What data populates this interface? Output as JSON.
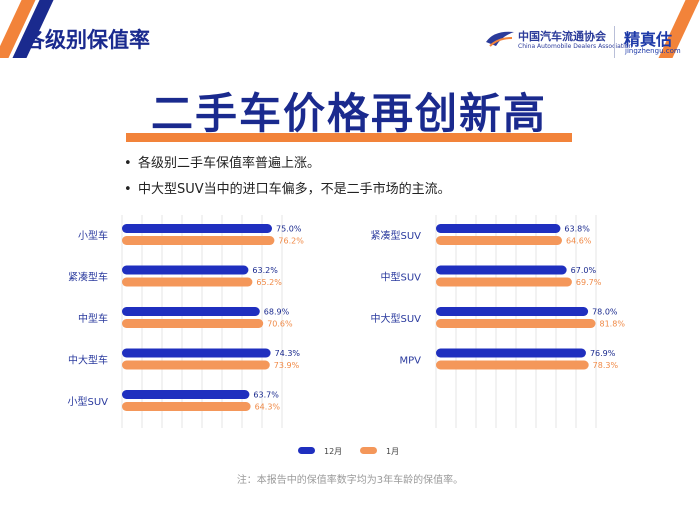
{
  "header": {
    "title": "各级别保值率",
    "cada_name": "中国汽车流通协会",
    "cada_name_en": "China Automobile Dealers Association",
    "jzg_name": "精真估",
    "jzg_url": "jingzhengu.com"
  },
  "headline": "二手车价格再创新高",
  "bullets": [
    "各级别二手车保值率普遍上涨。",
    "中大型SUV当中的进口车偏多，不是二手市场的主流。"
  ],
  "note": "注：本报告中的保值率数字均为3年车龄的保值率。",
  "colors": {
    "navy": "#1a2a8e",
    "dec": "#1f2fbf",
    "jan": "#f4975a",
    "accent": "#f2833a"
  },
  "chart_data": [
    {
      "type": "bar",
      "orientation": "horizontal",
      "categories": [
        "小型车",
        "紧凑型车",
        "中型车",
        "中大型车",
        "小型SUV"
      ],
      "series": [
        {
          "name": "12月",
          "values": [
            75.0,
            63.2,
            68.9,
            74.3,
            63.7
          ],
          "labels": [
            "75.0%",
            "63.2%",
            "68.9%",
            "74.3%",
            "63.7%"
          ]
        },
        {
          "name": "1月",
          "values": [
            76.2,
            65.2,
            70.6,
            73.9,
            64.3
          ],
          "labels": [
            "76.2%",
            "65.2%",
            "70.6%",
            "73.9%",
            "64.3%"
          ]
        }
      ],
      "xlim": [
        0,
        100
      ],
      "grid": true
    },
    {
      "type": "bar",
      "orientation": "horizontal",
      "categories": [
        "紧凑型SUV",
        "中型SUV",
        "中大型SUV",
        "MPV"
      ],
      "series": [
        {
          "name": "12月",
          "values": [
            63.8,
            67.0,
            78.0,
            76.9
          ],
          "labels": [
            "63.8%",
            "67.0%",
            "78.0%",
            "76.9%"
          ]
        },
        {
          "name": "1月",
          "values": [
            64.6,
            69.7,
            81.8,
            78.3
          ],
          "labels": [
            "64.6%",
            "69.7%",
            "81.8%",
            "78.3%"
          ]
        }
      ],
      "xlim": [
        0,
        100
      ],
      "grid": true
    }
  ],
  "legend": {
    "items": [
      "12月",
      "1月"
    ],
    "position": "bottom-center"
  }
}
